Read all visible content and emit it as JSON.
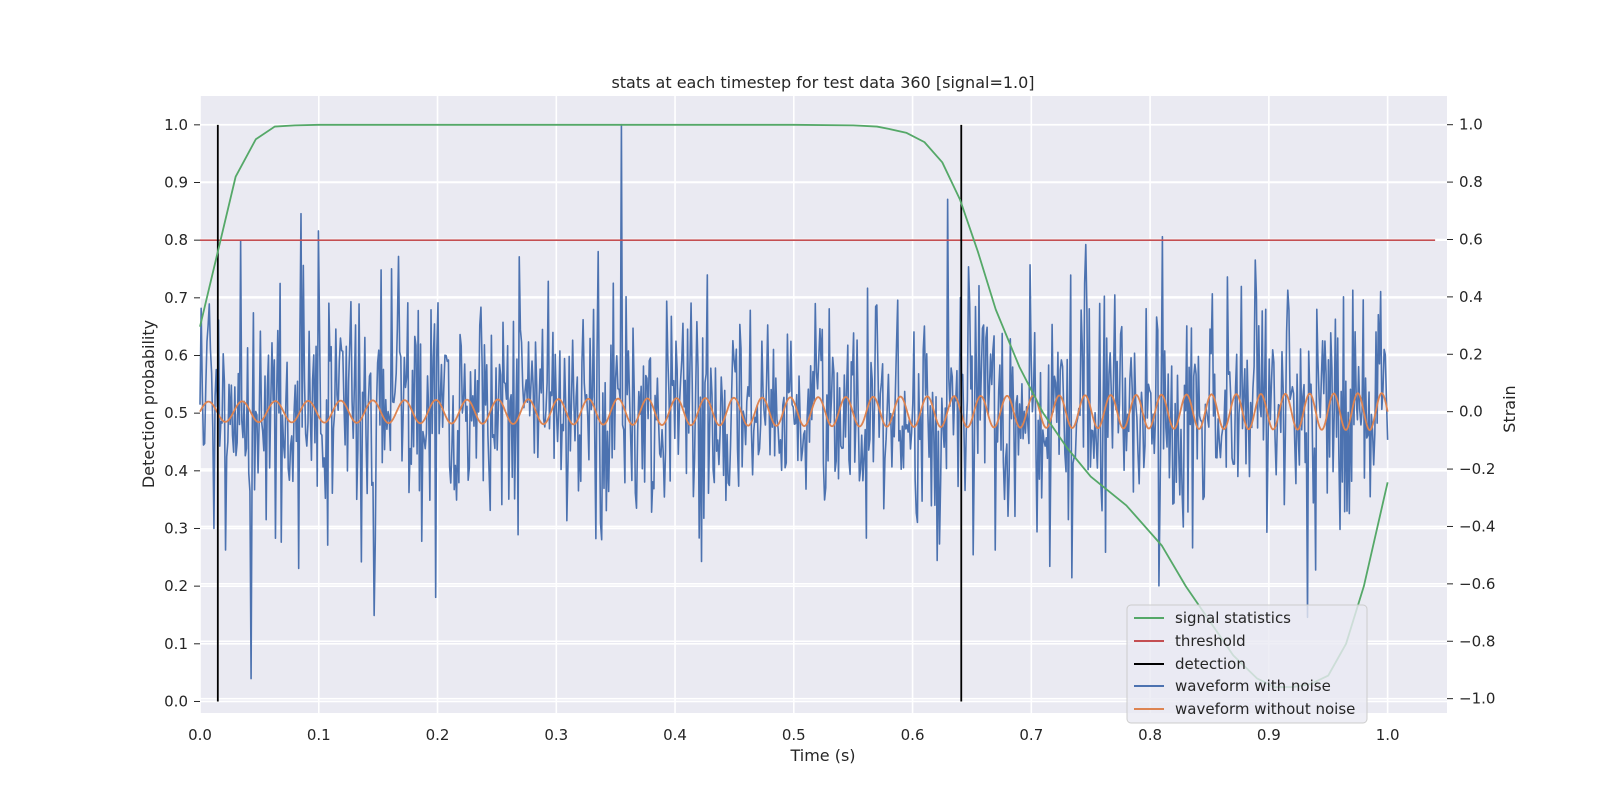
{
  "chart_data": {
    "type": "line",
    "title": "stats at each timestep for test data 360 [signal=1.0]",
    "xlabel": "Time (s)",
    "ylabel_left": "Detection probability",
    "ylabel_right": "Strain",
    "xlim": [
      0.0,
      1.05
    ],
    "ylim_left": [
      -0.02,
      1.05
    ],
    "ylim_right": [
      -1.05,
      1.1
    ],
    "x_ticks": [
      "0.0",
      "0.1",
      "0.2",
      "0.3",
      "0.4",
      "0.5",
      "0.6",
      "0.7",
      "0.8",
      "0.9",
      "1.0"
    ],
    "y_ticks_left": [
      "0.0",
      "0.1",
      "0.2",
      "0.3",
      "0.4",
      "0.5",
      "0.6",
      "0.7",
      "0.8",
      "0.9",
      "1.0"
    ],
    "y_ticks_right": [
      "−1.0",
      "−0.8",
      "−0.6",
      "−0.4",
      "−0.2",
      "0.0",
      "0.2",
      "0.4",
      "0.6",
      "0.8",
      "1.0"
    ],
    "x_tick_values": [
      0.0,
      0.1,
      0.2,
      0.3,
      0.4,
      0.5,
      0.6,
      0.7,
      0.8,
      0.9,
      1.0
    ],
    "y_tick_values_left": [
      0.0,
      0.1,
      0.2,
      0.3,
      0.4,
      0.5,
      0.6,
      0.7,
      0.8,
      0.9,
      1.0
    ],
    "y_tick_values_right": [
      -1.0,
      -0.8,
      -0.6,
      -0.4,
      -0.2,
      0.0,
      0.2,
      0.4,
      0.6,
      0.8,
      1.0
    ],
    "grid": true,
    "legend_position": "lower-right",
    "signal_statistics": {
      "name": "signal statistics",
      "color": "#55a868",
      "axis": "left",
      "x": [
        0.0,
        0.015,
        0.03,
        0.047,
        0.063,
        0.08,
        0.1,
        0.2,
        0.3,
        0.4,
        0.5,
        0.55,
        0.57,
        0.58,
        0.595,
        0.61,
        0.625,
        0.64,
        0.655,
        0.67,
        0.69,
        0.71,
        0.73,
        0.75,
        0.78,
        0.81,
        0.83,
        0.85,
        0.87,
        0.89,
        0.905,
        0.92,
        0.935,
        0.95,
        0.965,
        0.98,
        1.0
      ],
      "y": [
        0.65,
        0.78,
        0.91,
        0.975,
        0.997,
        0.999,
        1.0,
        1.0,
        1.0,
        1.0,
        1.0,
        0.999,
        0.997,
        0.993,
        0.986,
        0.97,
        0.935,
        0.87,
        0.78,
        0.68,
        0.58,
        0.5,
        0.44,
        0.39,
        0.34,
        0.27,
        0.2,
        0.14,
        0.08,
        0.04,
        0.025,
        0.025,
        0.03,
        0.045,
        0.1,
        0.2,
        0.38
      ]
    },
    "threshold": {
      "name": "threshold",
      "color": "#c44e52",
      "axis": "left",
      "value": 0.8,
      "x_range": [
        0.0,
        1.04
      ]
    },
    "detection": {
      "name": "detection",
      "color": "#000000",
      "axis": "left",
      "x": [
        0.015,
        0.641
      ],
      "y_range": [
        0.0,
        1.0
      ]
    },
    "waveform_with_noise": {
      "name": "waveform with noise",
      "color": "#4c72b0",
      "axis": "right",
      "x_range": [
        0.0,
        1.0
      ],
      "n_points": 1024,
      "approx_std": 0.2,
      "range": [
        -0.93,
        1.0
      ],
      "notable_points": [
        {
          "x": 0.043,
          "y": -0.93
        },
        {
          "x": 0.085,
          "y": 0.69
        },
        {
          "x": 0.1,
          "y": 0.63
        },
        {
          "x": 0.147,
          "y": -0.71
        },
        {
          "x": 0.355,
          "y": 1.0
        },
        {
          "x": 0.63,
          "y": 0.74
        },
        {
          "x": 0.81,
          "y": 0.61
        }
      ]
    },
    "waveform_without_noise": {
      "name": "waveform without noise",
      "color": "#dd8452",
      "axis": "right",
      "x_range": [
        0.0,
        1.0
      ],
      "amplitude_start": 0.035,
      "amplitude_end": 0.065,
      "freq_start_hz": 35,
      "freq_end_hz": 50
    }
  }
}
